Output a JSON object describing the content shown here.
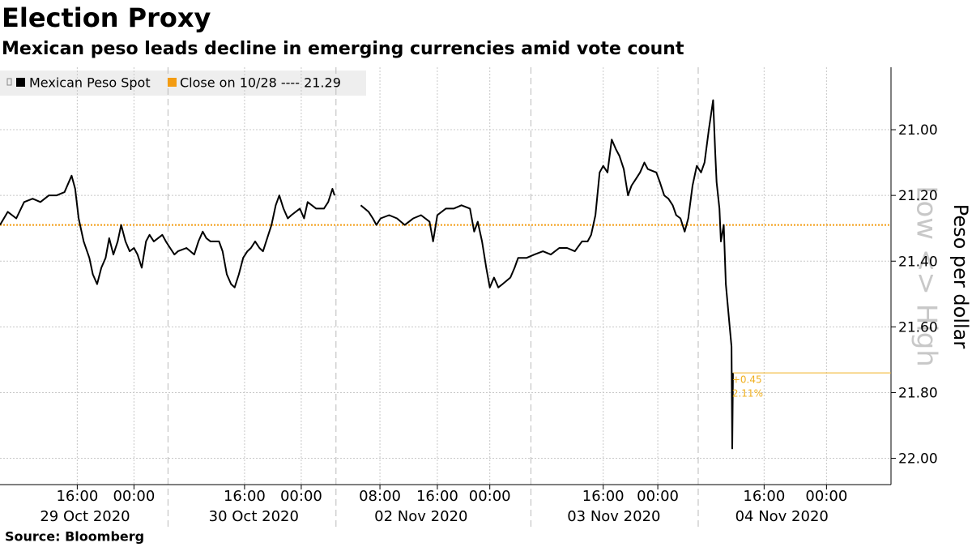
{
  "chart_data": {
    "type": "line",
    "title": "Election Proxy",
    "subtitle": "Mexican peso leads decline in emerging currencies amid vote count",
    "source": "Source: Bloomberg",
    "y_label": "Peso per dollar",
    "y_direction_label": "Low <> High",
    "y_inverted": true,
    "xlim": [
      0,
      125.7
    ],
    "ylim": [
      20.81,
      22.08
    ],
    "yticks": [
      {
        "value": 21,
        "label": "21.00"
      },
      {
        "value": 21.2,
        "label": "21.20"
      },
      {
        "value": 21.4,
        "label": "21.40"
      },
      {
        "value": 21.6,
        "label": "21.60"
      },
      {
        "value": 21.8,
        "label": "21.80"
      },
      {
        "value": 22,
        "label": "22.00"
      }
    ],
    "xticks": [
      {
        "value": 10.9,
        "label": "16:00"
      },
      {
        "value": 18.9,
        "label": "00:00"
      },
      {
        "value": 34.5,
        "label": "16:00"
      },
      {
        "value": 42.5,
        "label": "00:00"
      },
      {
        "value": 53.6,
        "label": "08:00"
      },
      {
        "value": 61.7,
        "label": "16:00"
      },
      {
        "value": 69.1,
        "label": "00:00"
      },
      {
        "value": 85.1,
        "label": "16:00"
      },
      {
        "value": 92.8,
        "label": "00:00"
      },
      {
        "value": 107.8,
        "label": "16:00"
      },
      {
        "value": 116.6,
        "label": "00:00"
      }
    ],
    "date_labels": [
      {
        "value": 12.0,
        "label": "29 Oct 2020"
      },
      {
        "value": 35.8,
        "label": "30 Oct 2020"
      },
      {
        "value": 59.4,
        "label": "02 Nov 2020"
      },
      {
        "value": 86.6,
        "label": "03 Nov 2020"
      },
      {
        "value": 110.3,
        "label": "04 Nov 2020"
      }
    ],
    "day_separators": [
      23.7,
      47.4,
      74.9,
      98.5
    ],
    "grid": true,
    "series": [
      {
        "name": "Mexican Peso Spot",
        "color": "#000000",
        "x": [
          0.0,
          1.1,
          2.3,
          3.4,
          4.6,
          5.7,
          6.9,
          8.0,
          9.1,
          10.1,
          10.6,
          11.1,
          11.8,
          12.6,
          13.1,
          13.7,
          14.3,
          14.9,
          15.4,
          16.0,
          16.6,
          17.1,
          17.7,
          18.3,
          18.9,
          19.4,
          20.0,
          20.6,
          21.1,
          21.7,
          22.3,
          22.9,
          23.4,
          24.0,
          24.6,
          25.1,
          26.3,
          27.4,
          28.0,
          28.6,
          29.1,
          29.7,
          30.9,
          31.4,
          32.0,
          32.6,
          33.1,
          33.7,
          34.3,
          34.9,
          35.4,
          36.0,
          36.6,
          37.1,
          37.7,
          38.3,
          38.9,
          39.4,
          40.0,
          40.6,
          41.1,
          42.3,
          42.9,
          43.4,
          44.6,
          45.7,
          46.3,
          46.9,
          47.2,
          48.5,
          50.9,
          52.0,
          52.6,
          53.1,
          53.7,
          54.9,
          56.0,
          57.1,
          58.3,
          59.4,
          60.6,
          61.1,
          61.7,
          62.9,
          64.0,
          65.1,
          66.3,
          66.9,
          67.4,
          68.0,
          68.6,
          69.1,
          69.7,
          70.3,
          70.9,
          72.0,
          72.6,
          73.1,
          74.3,
          75.4,
          76.6,
          77.7,
          78.9,
          80.0,
          81.1,
          82.1,
          82.9,
          83.4,
          84.0,
          84.6,
          85.1,
          85.7,
          86.3,
          86.9,
          87.4,
          88.0,
          88.6,
          89.1,
          89.7,
          90.3,
          90.9,
          91.4,
          92.6,
          93.1,
          93.7,
          94.3,
          94.9,
          95.4,
          96.0,
          96.6,
          97.1,
          97.7,
          98.3,
          98.9,
          99.4,
          100.0,
          100.6,
          100.9,
          101.1,
          101.5,
          101.7,
          102.1,
          102.4,
          102.9,
          103.2,
          103.3,
          103.4
        ],
        "values": [
          21.29,
          21.25,
          21.27,
          21.22,
          21.21,
          21.22,
          21.2,
          21.2,
          21.19,
          21.14,
          21.18,
          21.27,
          21.34,
          21.39,
          21.44,
          21.47,
          21.42,
          21.39,
          21.33,
          21.38,
          21.34,
          21.29,
          21.34,
          21.37,
          21.36,
          21.38,
          21.42,
          21.34,
          21.32,
          21.34,
          21.33,
          21.32,
          21.34,
          21.36,
          21.38,
          21.37,
          21.36,
          21.38,
          21.34,
          21.31,
          21.33,
          21.34,
          21.34,
          21.37,
          21.44,
          21.47,
          21.48,
          21.44,
          21.39,
          21.37,
          21.36,
          21.34,
          21.36,
          21.37,
          21.33,
          21.29,
          21.23,
          21.2,
          21.24,
          21.27,
          21.26,
          21.24,
          21.27,
          21.22,
          21.24,
          21.24,
          21.22,
          21.18,
          21.2,
          null,
          21.23,
          21.25,
          21.27,
          21.29,
          21.27,
          21.26,
          21.27,
          21.29,
          21.27,
          21.26,
          21.28,
          21.34,
          21.26,
          21.24,
          21.24,
          21.23,
          21.24,
          21.31,
          21.28,
          21.34,
          21.42,
          21.48,
          21.45,
          21.48,
          21.47,
          21.45,
          21.42,
          21.39,
          21.39,
          21.38,
          21.37,
          21.38,
          21.36,
          21.36,
          21.37,
          21.34,
          21.34,
          21.32,
          21.26,
          21.13,
          21.11,
          21.13,
          21.03,
          21.06,
          21.08,
          21.12,
          21.2,
          21.17,
          21.15,
          21.13,
          21.1,
          21.12,
          21.13,
          21.16,
          21.2,
          21.21,
          21.23,
          21.26,
          21.27,
          21.31,
          21.27,
          21.17,
          21.11,
          21.13,
          21.1,
          21.0,
          20.91,
          21.07,
          21.16,
          21.24,
          21.34,
          21.29,
          21.47,
          21.59,
          21.66,
          21.97,
          21.74
        ]
      }
    ],
    "reference_line": {
      "label": "Close on 10/28 ---- 21.29",
      "value": 21.29,
      "color": "#f39c12"
    },
    "last_value_color": "#f0b020",
    "annotations": [
      "+0.45",
      "2.11%"
    ]
  }
}
